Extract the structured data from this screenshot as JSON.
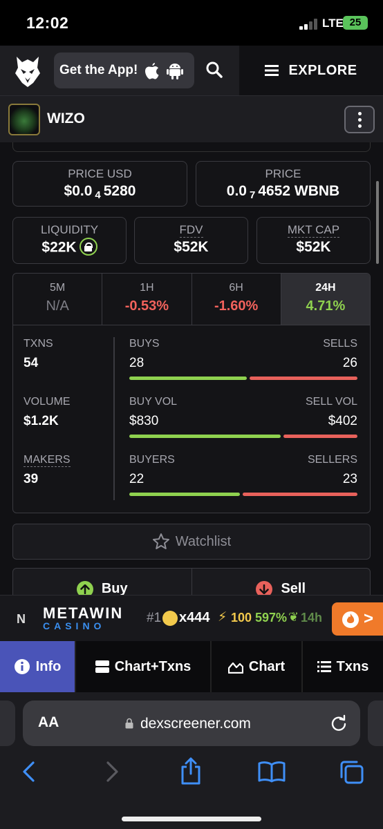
{
  "status_bar": {
    "time": "12:02",
    "network": "LTE",
    "battery": "25"
  },
  "header": {
    "get_app_label": "Get the App!",
    "explore_label": "EXPLORE"
  },
  "token": {
    "name": "WIZO"
  },
  "price_cards": {
    "price_usd": {
      "label": "PRICE USD",
      "prefix": "$0.0",
      "subscript": "4",
      "suffix": "5280"
    },
    "price": {
      "label": "PRICE",
      "prefix": "0.0",
      "subscript": "7",
      "suffix": "4652 WBNB"
    }
  },
  "metric_cards": {
    "liquidity": {
      "label": "LIQUIDITY",
      "value": "$22K"
    },
    "fdv": {
      "label": "FDV",
      "value": "$52K"
    },
    "mkt_cap": {
      "label": "MKT CAP",
      "value": "$52K"
    }
  },
  "timeframes": [
    {
      "label": "5M",
      "value": "N/A"
    },
    {
      "label": "1H",
      "value": "-0.53%"
    },
    {
      "label": "6H",
      "value": "-1.60%"
    },
    {
      "label": "24H",
      "value": "4.71%"
    }
  ],
  "stats": {
    "txns": {
      "label": "TXNS",
      "value": "54",
      "buy_label": "BUYS",
      "buy_value": "28",
      "sell_label": "SELLS",
      "sell_value": "26",
      "buy_share": 0.52
    },
    "volume": {
      "label": "VOLUME",
      "value": "$1.2K",
      "buy_label": "BUY VOL",
      "buy_value": "$830",
      "sell_label": "SELL VOL",
      "sell_value": "$402",
      "buy_share": 0.67
    },
    "makers": {
      "label": "MAKERS",
      "value": "39",
      "buy_label": "BUYERS",
      "buy_value": "22",
      "sell_label": "SELLERS",
      "sell_value": "23",
      "buy_share": 0.49
    }
  },
  "actions": {
    "watchlist": "Watchlist",
    "buy": "Buy",
    "sell": "Sell"
  },
  "ad": {
    "brand": "METAWIN",
    "sub": "CASINO",
    "rank": "#1",
    "multiplier": "x444",
    "amount": "100",
    "percent": "597%",
    "time": "14h",
    "cta_arrow": ">"
  },
  "bottom_tabs": [
    "Info",
    "Chart+Txns",
    "Chart",
    "Txns"
  ],
  "browser": {
    "aa": "AA",
    "url": "dexscreener.com"
  },
  "colors": {
    "green": "#8fd14f",
    "red": "#e8615b",
    "accent_tab": "#4a54b8",
    "ad_cta": "#f07a2a"
  }
}
